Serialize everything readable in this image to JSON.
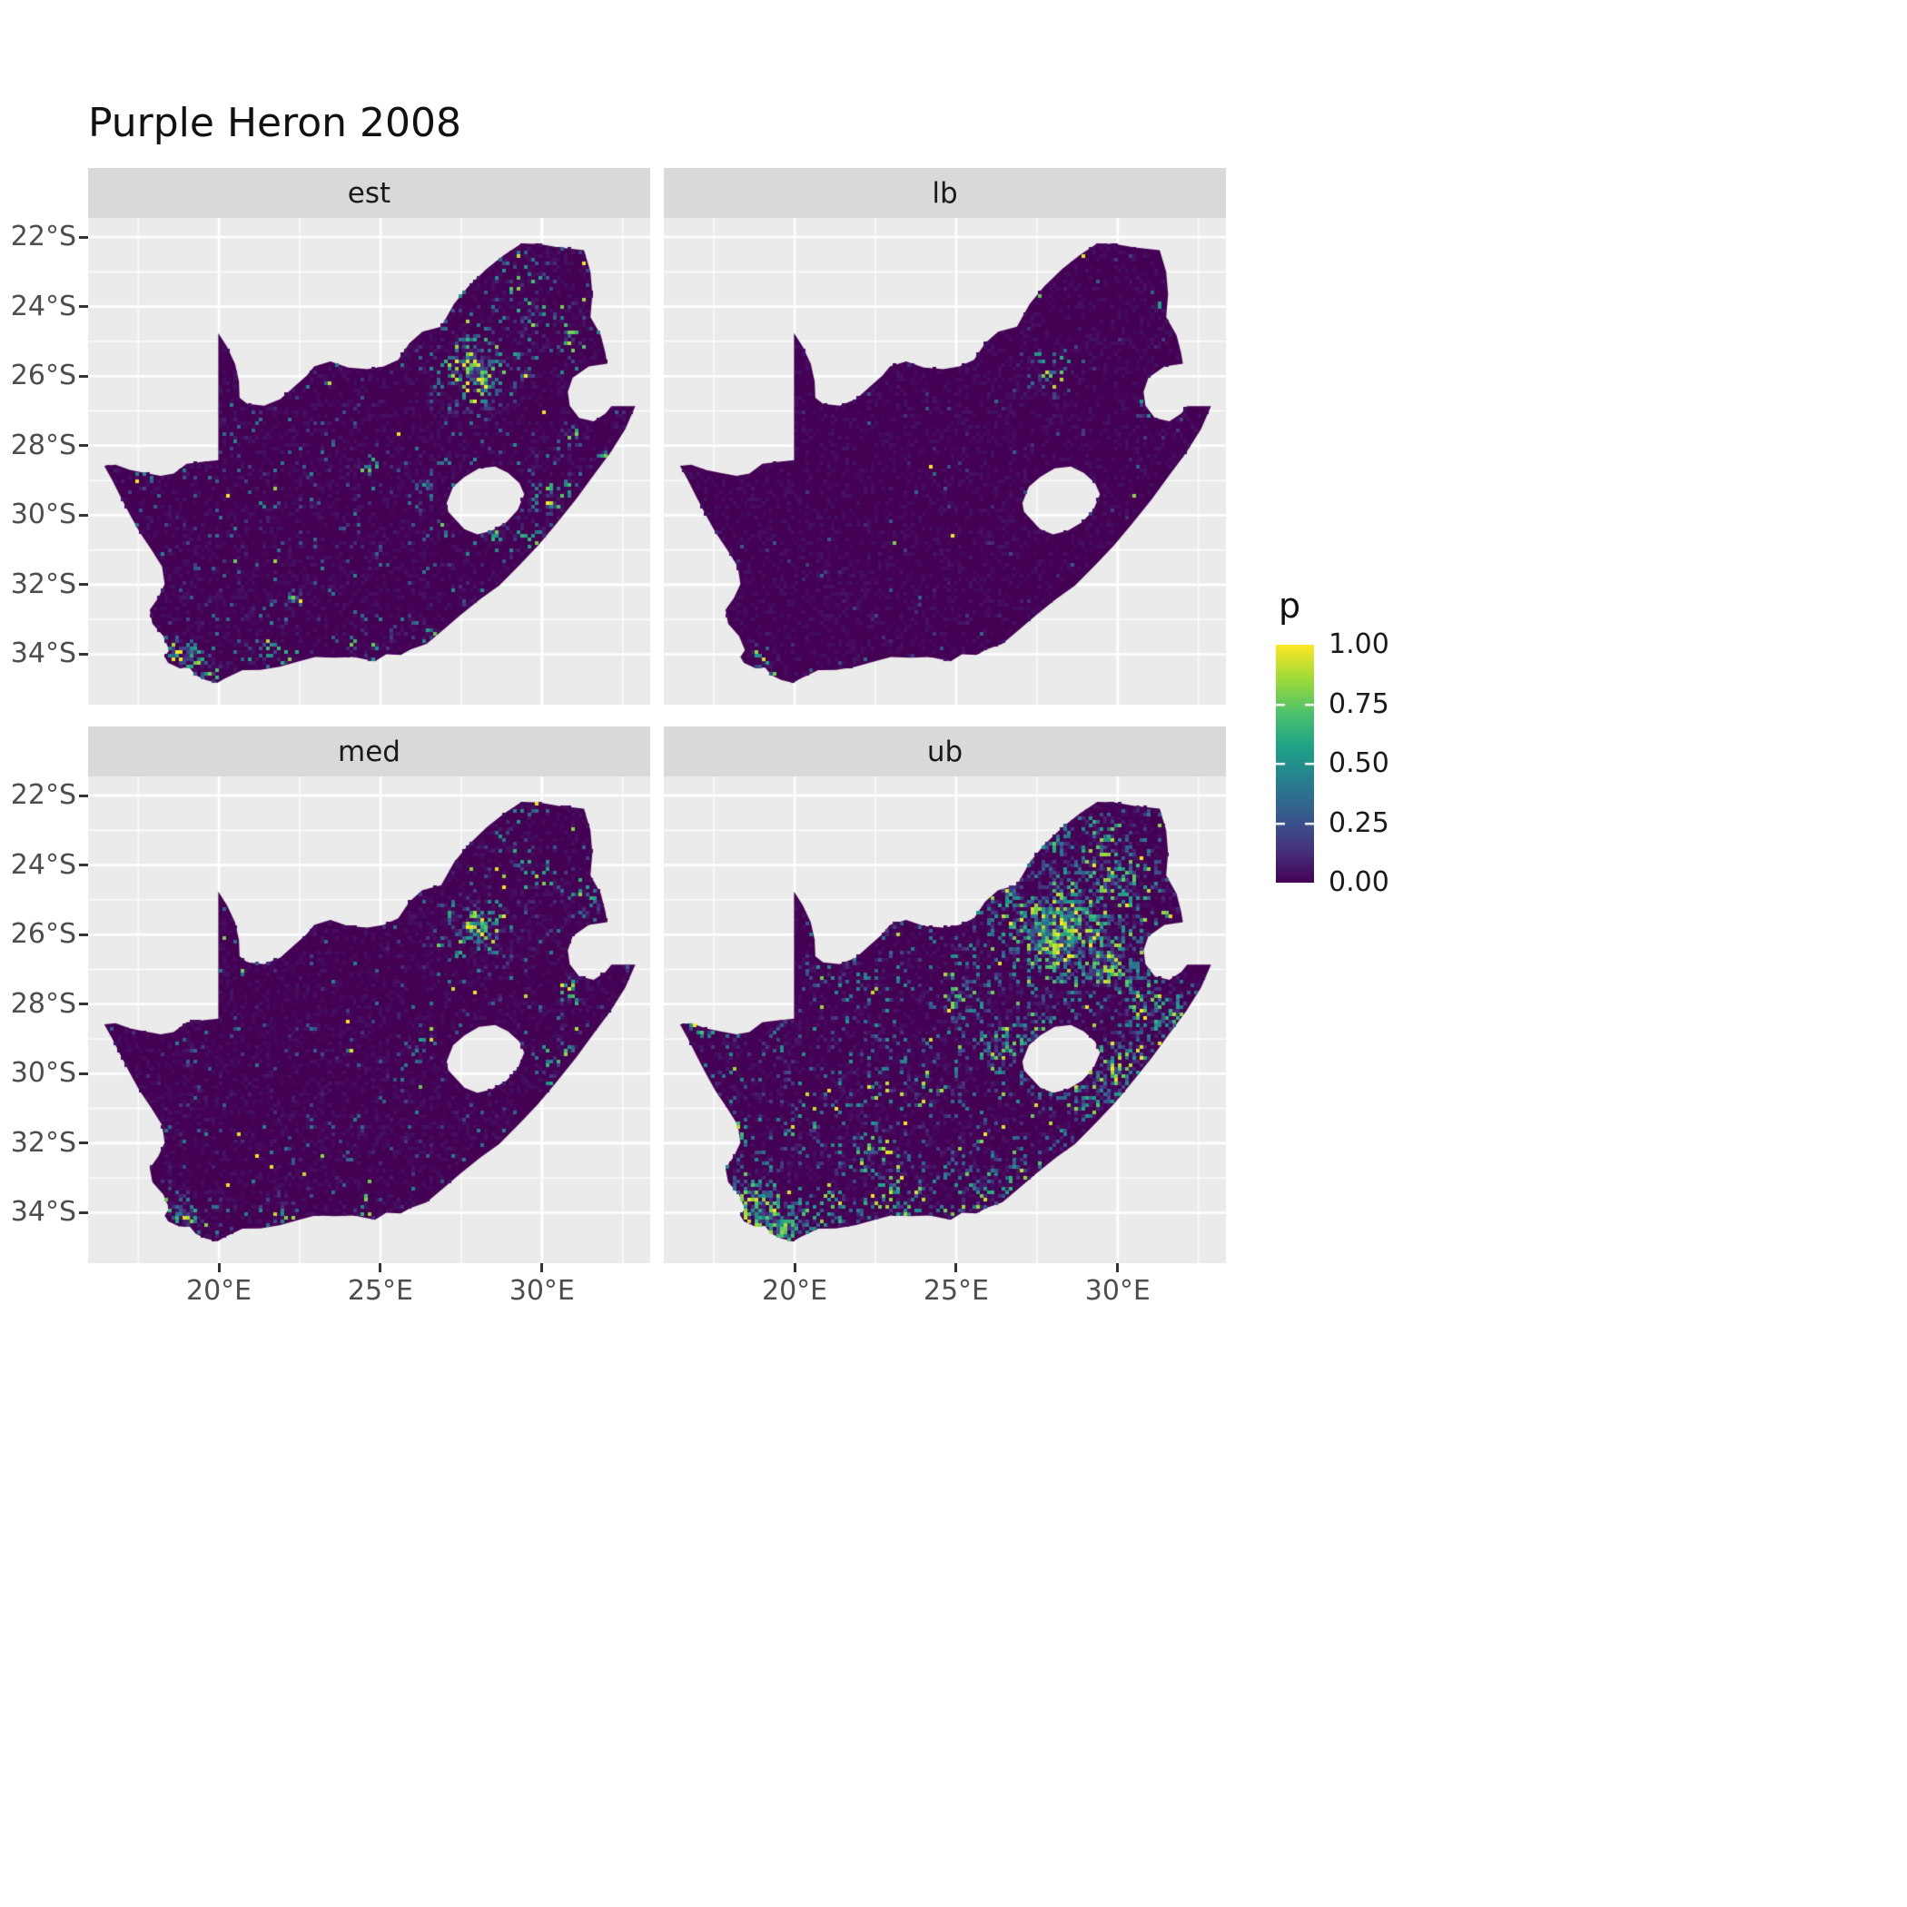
{
  "chart_data": {
    "type": "heatmap",
    "title": "Purple Heron 2008",
    "facets": [
      {
        "id": "est",
        "label": "est"
      },
      {
        "id": "lb",
        "label": "lb"
      },
      {
        "id": "med",
        "label": "med"
      },
      {
        "id": "ub",
        "label": "ub"
      }
    ],
    "legend": {
      "title": "p",
      "tick_labels": [
        "1.00",
        "0.75",
        "0.50",
        "0.25",
        "0.00"
      ],
      "tick_values": [
        1,
        0.75,
        0.5,
        0.25,
        0
      ],
      "bar_tick_values": [
        0.25,
        0.5,
        0.75
      ]
    },
    "x_axis": {
      "range": [
        15.95,
        33.35
      ],
      "ticks": [
        {
          "v": 20,
          "label": "20°E"
        },
        {
          "v": 25,
          "label": "25°E"
        },
        {
          "v": 30,
          "label": "30°E"
        }
      ],
      "minor": [
        17.5,
        22.5,
        27.5,
        32.5
      ]
    },
    "y_axis": {
      "range": [
        -35.45,
        -21.45
      ],
      "ticks": [
        {
          "v": -22,
          "label": "22°S"
        },
        {
          "v": -24,
          "label": "24°S"
        },
        {
          "v": -26,
          "label": "26°S"
        },
        {
          "v": -28,
          "label": "28°S"
        },
        {
          "v": -30,
          "label": "30°S"
        },
        {
          "v": -32,
          "label": "32°S"
        },
        {
          "v": -34,
          "label": "34°S"
        }
      ],
      "minor": [
        -23,
        -25,
        -27,
        -29,
        -31,
        -33
      ]
    },
    "colors": {
      "panel_bg": "#ebebeb",
      "strip_bg": "#d9d9d9",
      "grid": "#ffffff",
      "map_base": "#440154",
      "axis_text": "#4d4d4d",
      "tick_mark": "#333333",
      "title_text": "#111111"
    },
    "colormap": {
      "name": "viridis",
      "positions": [
        0,
        0.14,
        0.29,
        0.43,
        0.57,
        0.71,
        0.86,
        1
      ],
      "colors": [
        "#440154",
        "#46327e",
        "#365c8d",
        "#277f8e",
        "#1fa187",
        "#4ac16d",
        "#a0da39",
        "#fde725"
      ]
    },
    "map": {
      "region": "South Africa",
      "outer": [
        [
          16.45,
          -28.58
        ],
        [
          16.8,
          -28.55
        ],
        [
          17.25,
          -28.7
        ],
        [
          17.7,
          -28.78
        ],
        [
          18.2,
          -28.87
        ],
        [
          18.6,
          -28.8
        ],
        [
          19.0,
          -28.52
        ],
        [
          19.45,
          -28.47
        ],
        [
          19.98,
          -28.42
        ],
        [
          19.98,
          -24.76
        ],
        [
          20.25,
          -25.15
        ],
        [
          20.5,
          -25.65
        ],
        [
          20.62,
          -26.15
        ],
        [
          20.64,
          -26.62
        ],
        [
          20.88,
          -26.8
        ],
        [
          21.4,
          -26.85
        ],
        [
          21.9,
          -26.66
        ],
        [
          22.3,
          -26.33
        ],
        [
          22.72,
          -25.98
        ],
        [
          22.95,
          -25.72
        ],
        [
          23.45,
          -25.58
        ],
        [
          24.0,
          -25.75
        ],
        [
          24.6,
          -25.8
        ],
        [
          25.1,
          -25.72
        ],
        [
          25.55,
          -25.53
        ],
        [
          25.9,
          -25.05
        ],
        [
          26.3,
          -24.72
        ],
        [
          26.88,
          -24.58
        ],
        [
          27.28,
          -23.92
        ],
        [
          27.72,
          -23.42
        ],
        [
          28.28,
          -22.92
        ],
        [
          28.82,
          -22.52
        ],
        [
          29.37,
          -22.18
        ],
        [
          29.92,
          -22.2
        ],
        [
          30.52,
          -22.3
        ],
        [
          31.3,
          -22.38
        ],
        [
          31.5,
          -23.0
        ],
        [
          31.56,
          -23.65
        ],
        [
          31.5,
          -24.3
        ],
        [
          31.82,
          -24.82
        ],
        [
          31.96,
          -25.32
        ],
        [
          32.02,
          -25.64
        ],
        [
          31.45,
          -25.72
        ],
        [
          30.95,
          -26.05
        ],
        [
          30.8,
          -26.45
        ],
        [
          30.86,
          -26.85
        ],
        [
          31.15,
          -27.2
        ],
        [
          31.6,
          -27.3
        ],
        [
          31.97,
          -27.07
        ],
        [
          32.15,
          -26.86
        ],
        [
          32.89,
          -26.86
        ],
        [
          32.58,
          -27.52
        ],
        [
          32.12,
          -28.2
        ],
        [
          31.62,
          -28.82
        ],
        [
          31.05,
          -29.55
        ],
        [
          30.4,
          -30.3
        ],
        [
          29.88,
          -30.87
        ],
        [
          29.32,
          -31.42
        ],
        [
          28.68,
          -32.02
        ],
        [
          28.08,
          -32.42
        ],
        [
          27.48,
          -32.87
        ],
        [
          26.98,
          -33.27
        ],
        [
          26.43,
          -33.7
        ],
        [
          25.93,
          -33.86
        ],
        [
          25.63,
          -34.02
        ],
        [
          25.18,
          -34.0
        ],
        [
          24.83,
          -34.2
        ],
        [
          24.18,
          -34.08
        ],
        [
          23.58,
          -34.1
        ],
        [
          22.98,
          -34.08
        ],
        [
          22.48,
          -34.2
        ],
        [
          21.88,
          -34.36
        ],
        [
          21.28,
          -34.45
        ],
        [
          20.73,
          -34.46
        ],
        [
          20.18,
          -34.7
        ],
        [
          19.95,
          -34.82
        ],
        [
          19.58,
          -34.74
        ],
        [
          19.28,
          -34.6
        ],
        [
          19.08,
          -34.38
        ],
        [
          18.78,
          -34.4
        ],
        [
          18.43,
          -34.25
        ],
        [
          18.32,
          -34.08
        ],
        [
          18.46,
          -33.88
        ],
        [
          18.28,
          -33.48
        ],
        [
          17.94,
          -33.12
        ],
        [
          17.86,
          -32.72
        ],
        [
          18.12,
          -32.38
        ],
        [
          18.32,
          -31.98
        ],
        [
          18.24,
          -31.48
        ],
        [
          17.9,
          -30.98
        ],
        [
          17.54,
          -30.48
        ],
        [
          17.24,
          -29.98
        ],
        [
          16.94,
          -29.44
        ],
        [
          16.7,
          -29.0
        ]
      ],
      "lesotho_hole": [
        [
          27.05,
          -29.65
        ],
        [
          27.25,
          -29.18
        ],
        [
          27.6,
          -28.9
        ],
        [
          28.05,
          -28.65
        ],
        [
          28.55,
          -28.6
        ],
        [
          28.95,
          -28.78
        ],
        [
          29.3,
          -29.08
        ],
        [
          29.45,
          -29.4
        ],
        [
          29.25,
          -29.85
        ],
        [
          28.9,
          -30.2
        ],
        [
          28.45,
          -30.45
        ],
        [
          28.0,
          -30.55
        ],
        [
          27.6,
          -30.4
        ],
        [
          27.3,
          -30.1
        ],
        [
          27.1,
          -29.9
        ]
      ]
    },
    "speckle": {
      "est": {
        "seed": 11,
        "base_density": 0.05,
        "base_vmax": 0.5,
        "pop": 0.05,
        "hotspots": [
          [
            28.0,
            -25.9,
            1.5,
            0.5,
            1.0
          ],
          [
            28.0,
            -25.85,
            0.6,
            0.8,
            1.0
          ],
          [
            29.8,
            -24.3,
            1.0,
            0.22,
            0.9
          ],
          [
            27.0,
            -23.9,
            0.8,
            0.15,
            0.8
          ],
          [
            31.0,
            -24.9,
            0.8,
            0.2,
            0.9
          ],
          [
            30.9,
            -27.6,
            0.5,
            0.5,
            1.0
          ],
          [
            30.5,
            -29.6,
            0.9,
            0.4,
            0.95
          ],
          [
            29.7,
            -30.6,
            0.7,
            0.3,
            0.85
          ],
          [
            26.3,
            -29.15,
            0.45,
            0.5,
            0.95
          ],
          [
            24.8,
            -28.6,
            0.5,
            0.2,
            0.75
          ],
          [
            18.85,
            -34.1,
            0.75,
            0.65,
            1.0
          ],
          [
            19.6,
            -34.55,
            0.6,
            0.4,
            0.95
          ],
          [
            21.6,
            -34.3,
            1.2,
            0.2,
            0.9
          ],
          [
            24.7,
            -34.05,
            1.0,
            0.18,
            0.9
          ],
          [
            26.9,
            -33.6,
            0.8,
            0.18,
            0.85
          ],
          [
            22.3,
            -32.4,
            0.3,
            0.6,
            1.0
          ],
          [
            29.3,
            -23.0,
            1.0,
            0.15,
            0.85
          ],
          [
            28.4,
            -30.6,
            0.5,
            0.25,
            0.9
          ],
          [
            31.9,
            -28.4,
            0.5,
            0.3,
            0.95
          ]
        ]
      },
      "lb": {
        "seed": 22,
        "base_density": 0.013,
        "base_vmax": 0.35,
        "pop": 0.02,
        "hotspots": [
          [
            27.9,
            -25.95,
            0.85,
            0.3,
            0.95
          ],
          [
            28.6,
            -25.3,
            0.5,
            0.15,
            0.8
          ],
          [
            19.0,
            -34.35,
            0.55,
            0.35,
            0.9
          ],
          [
            30.85,
            -26.9,
            0.3,
            0.35,
            0.95
          ],
          [
            30.4,
            -29.7,
            0.4,
            0.12,
            0.6
          ],
          [
            31.3,
            -23.9,
            0.25,
            0.3,
            0.95
          ]
        ]
      },
      "med": {
        "seed": 33,
        "base_density": 0.04,
        "base_vmax": 0.45,
        "pop": 0.05,
        "hotspots": [
          [
            28.0,
            -25.9,
            1.3,
            0.45,
            1.0
          ],
          [
            28.0,
            -25.85,
            0.55,
            0.7,
            1.0
          ],
          [
            29.9,
            -24.2,
            0.9,
            0.2,
            0.9
          ],
          [
            31.2,
            -24.9,
            0.7,
            0.18,
            0.9
          ],
          [
            30.9,
            -27.7,
            0.45,
            0.45,
            1.0
          ],
          [
            30.4,
            -29.7,
            0.8,
            0.3,
            0.9
          ],
          [
            26.3,
            -29.15,
            0.4,
            0.4,
            0.95
          ],
          [
            18.9,
            -34.1,
            0.7,
            0.6,
            1.0
          ],
          [
            19.6,
            -34.55,
            0.55,
            0.35,
            0.95
          ],
          [
            21.7,
            -34.3,
            1.1,
            0.17,
            0.85
          ],
          [
            24.8,
            -34.0,
            0.9,
            0.15,
            0.85
          ],
          [
            22.3,
            -32.5,
            0.3,
            0.5,
            1.0
          ],
          [
            29.3,
            -23.1,
            0.9,
            0.12,
            0.8
          ]
        ]
      },
      "ub": {
        "seed": 44,
        "base_density": 0.12,
        "base_vmax": 0.55,
        "pop": 0.06,
        "hotspots": [
          [
            28.2,
            -25.9,
            2.2,
            0.55,
            1.0
          ],
          [
            28.1,
            -26.0,
            1.0,
            0.9,
            1.0
          ],
          [
            30.0,
            -24.6,
            1.3,
            0.4,
            0.95
          ],
          [
            26.5,
            -24.8,
            1.0,
            0.3,
            0.9
          ],
          [
            29.8,
            -26.9,
            1.2,
            0.5,
            0.95
          ],
          [
            31.0,
            -28.0,
            1.0,
            0.5,
            1.0
          ],
          [
            30.3,
            -29.7,
            1.2,
            0.55,
            1.0
          ],
          [
            29.0,
            -30.9,
            0.9,
            0.35,
            0.9
          ],
          [
            27.5,
            -28.8,
            1.0,
            0.35,
            0.95
          ],
          [
            26.3,
            -29.2,
            0.8,
            0.5,
            1.0
          ],
          [
            25.0,
            -27.8,
            0.9,
            0.25,
            0.9
          ],
          [
            18.9,
            -33.9,
            1.1,
            0.8,
            1.0
          ],
          [
            19.6,
            -34.6,
            0.8,
            0.6,
            1.0
          ],
          [
            20.8,
            -34.3,
            1.2,
            0.4,
            0.95
          ],
          [
            23.2,
            -33.8,
            1.5,
            0.25,
            0.9
          ],
          [
            25.8,
            -33.7,
            1.2,
            0.35,
            0.95
          ],
          [
            27.3,
            -33.0,
            1.0,
            0.3,
            0.9
          ],
          [
            22.5,
            -32.3,
            0.8,
            0.35,
            1.0
          ],
          [
            20.3,
            -31.8,
            0.8,
            0.2,
            0.85
          ],
          [
            18.2,
            -31.7,
            0.5,
            0.3,
            0.9
          ],
          [
            17.3,
            -28.7,
            0.4,
            0.3,
            0.9
          ],
          [
            29.5,
            -23.3,
            1.2,
            0.3,
            0.9
          ],
          [
            27.5,
            -23.3,
            1.0,
            0.2,
            0.85
          ],
          [
            24.0,
            -30.5,
            1.2,
            0.12,
            0.7
          ],
          [
            32.0,
            -28.4,
            0.6,
            0.4,
            0.95
          ]
        ]
      }
    }
  }
}
